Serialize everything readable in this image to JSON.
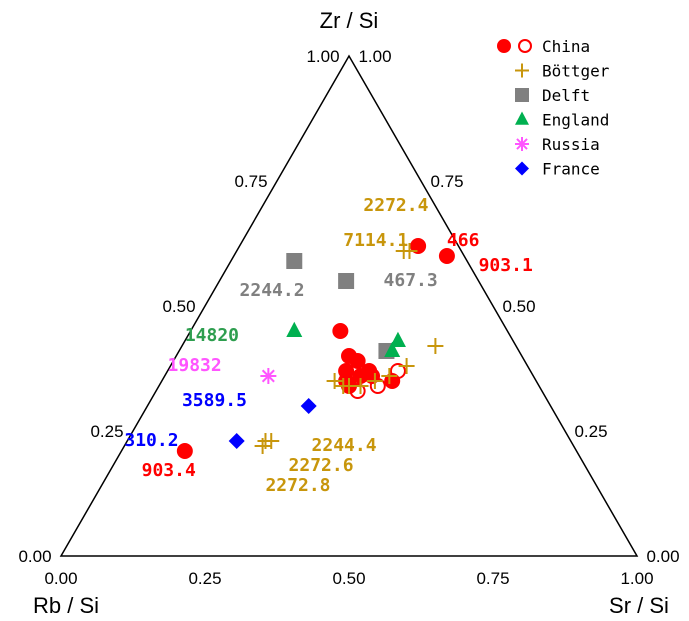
{
  "chart_data": {
    "type": "ternary",
    "axes": {
      "top": {
        "title": "Zr / Si"
      },
      "left": {
        "title": "Rb / Si"
      },
      "right": {
        "title": "Sr / Si"
      }
    },
    "range": [
      0,
      1
    ],
    "left_side_ticks": [
      "0.00",
      "0.25",
      "0.50",
      "0.75",
      "1.00"
    ],
    "right_side_ticks": [
      "1.00",
      "0.75",
      "0.50",
      "0.25",
      "0.00"
    ],
    "bottom_ticks": [
      "0.00",
      "0.25",
      "0.50",
      "0.75",
      "1.00"
    ],
    "legend_position": "top-right",
    "series": [
      {
        "name": "China",
        "marker": "circle",
        "color": "#ff0000",
        "points": [
          {
            "zr": 0.62,
            "sr": 0.31
          },
          {
            "zr": 0.6,
            "sr": 0.37
          },
          {
            "zr": 0.45,
            "sr": 0.26
          },
          {
            "zr": 0.4,
            "sr": 0.3
          },
          {
            "zr": 0.39,
            "sr": 0.32
          },
          {
            "zr": 0.37,
            "sr": 0.35
          },
          {
            "zr": 0.36,
            "sr": 0.34
          },
          {
            "zr": 0.37,
            "sr": 0.31
          },
          {
            "zr": 0.35,
            "sr": 0.32
          },
          {
            "zr": 0.34,
            "sr": 0.33
          },
          {
            "zr": 0.36,
            "sr": 0.36
          },
          {
            "zr": 0.35,
            "sr": 0.4
          },
          {
            "zr": 0.21,
            "sr": 0.11
          }
        ]
      },
      {
        "name": "China",
        "marker": "open-circle",
        "color": "#ff0000",
        "points": [
          {
            "zr": 0.37,
            "sr": 0.4
          },
          {
            "zr": 0.34,
            "sr": 0.38
          },
          {
            "zr": 0.33,
            "sr": 0.35
          }
        ]
      },
      {
        "name": "Böttger",
        "marker": "plus",
        "color": "#c8960c",
        "points": [
          {
            "zr": 0.61,
            "sr": 0.3
          },
          {
            "zr": 0.61,
            "sr": 0.29
          },
          {
            "zr": 0.42,
            "sr": 0.44
          },
          {
            "zr": 0.38,
            "sr": 0.41
          },
          {
            "zr": 0.36,
            "sr": 0.39
          },
          {
            "zr": 0.35,
            "sr": 0.37
          },
          {
            "zr": 0.34,
            "sr": 0.35
          },
          {
            "zr": 0.34,
            "sr": 0.33
          },
          {
            "zr": 0.34,
            "sr": 0.32
          },
          {
            "zr": 0.35,
            "sr": 0.3
          },
          {
            "zr": 0.23,
            "sr": 0.24
          },
          {
            "zr": 0.23,
            "sr": 0.25
          },
          {
            "zr": 0.22,
            "sr": 0.24
          }
        ]
      },
      {
        "name": "Delft",
        "marker": "square",
        "color": "#808080",
        "points": [
          {
            "zr": 0.59,
            "sr": 0.11
          },
          {
            "zr": 0.55,
            "sr": 0.22
          },
          {
            "zr": 0.41,
            "sr": 0.36
          }
        ]
      },
      {
        "name": "England",
        "marker": "triangle",
        "color": "#00b050",
        "points": [
          {
            "zr": 0.45,
            "sr": 0.18
          },
          {
            "zr": 0.43,
            "sr": 0.37
          },
          {
            "zr": 0.41,
            "sr": 0.37
          }
        ]
      },
      {
        "name": "Russia",
        "marker": "asterisk",
        "color": "#ff55ff",
        "points": [
          {
            "zr": 0.36,
            "sr": 0.18
          }
        ]
      },
      {
        "name": "France",
        "marker": "diamond",
        "color": "#0000ff",
        "points": [
          {
            "zr": 0.3,
            "sr": 0.28
          },
          {
            "zr": 0.23,
            "sr": 0.19
          }
        ]
      }
    ],
    "annotations": [
      {
        "text": "2272.4",
        "color": "#c8960c",
        "zr": 0.69,
        "sr": 0.18
      },
      {
        "text": "7114.1",
        "color": "#c8960c",
        "zr": 0.62,
        "sr": 0.18
      },
      {
        "text": "466",
        "color": "#ff0000",
        "zr": 0.62,
        "sr": 0.36
      },
      {
        "text": "903.1",
        "color": "#ff0000",
        "zr": 0.57,
        "sr": 0.44
      },
      {
        "text": "467.3",
        "color": "#808080",
        "zr": 0.54,
        "sr": 0.29
      },
      {
        "text": "2244.2",
        "color": "#808080",
        "zr": 0.52,
        "sr": 0.05
      },
      {
        "text": "14820",
        "color": "#2e9e4f",
        "zr": 0.43,
        "sr": 0.0
      },
      {
        "text": "19832",
        "color": "#ff55ff",
        "zr": 0.37,
        "sr": 0.0
      },
      {
        "text": "3589.5",
        "color": "#0000ff",
        "zr": 0.3,
        "sr": 0.06
      },
      {
        "text": "310.2",
        "color": "#0000ff",
        "zr": 0.22,
        "sr": 0.0
      },
      {
        "text": "903.4",
        "color": "#ff0000",
        "zr": 0.16,
        "sr": 0.06
      },
      {
        "text": "2244.4",
        "color": "#c8960c",
        "zr": 0.21,
        "sr": 0.33
      },
      {
        "text": "2272.6",
        "color": "#c8960c",
        "zr": 0.17,
        "sr": 0.31
      },
      {
        "text": "2272.8",
        "color": "#c8960c",
        "zr": 0.13,
        "sr": 0.29
      }
    ]
  }
}
